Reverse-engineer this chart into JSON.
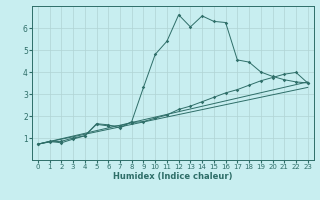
{
  "xlabel": "Humidex (Indice chaleur)",
  "bg_color": "#c8eef0",
  "line_color": "#2e6e68",
  "grid_color": "#b0d4d4",
  "xlim": [
    -0.5,
    23.5
  ],
  "ylim": [
    0,
    7
  ],
  "xticks": [
    0,
    1,
    2,
    3,
    4,
    5,
    6,
    7,
    8,
    9,
    10,
    11,
    12,
    13,
    14,
    15,
    16,
    17,
    18,
    19,
    20,
    21,
    22,
    23
  ],
  "yticks": [
    1,
    2,
    3,
    4,
    5,
    6
  ],
  "line1_x": [
    0,
    1,
    2,
    3,
    4,
    5,
    6,
    7,
    8,
    9,
    10,
    11,
    12,
    13,
    14,
    15,
    16,
    17,
    18,
    19,
    20,
    21,
    22,
    23
  ],
  "line1_y": [
    0.72,
    0.85,
    0.78,
    0.95,
    1.1,
    1.65,
    1.6,
    1.45,
    1.75,
    3.3,
    4.8,
    5.4,
    6.6,
    6.05,
    6.55,
    6.3,
    6.25,
    4.55,
    4.45,
    4.0,
    3.8,
    3.65,
    3.55,
    3.5
  ],
  "line2_x": [
    0,
    1,
    2,
    3,
    4,
    5,
    6,
    7,
    8,
    9,
    10,
    11,
    12,
    13,
    14,
    15,
    16,
    17,
    18,
    19,
    20,
    21,
    22,
    23
  ],
  "line2_y": [
    0.72,
    0.82,
    0.85,
    1.0,
    1.1,
    1.62,
    1.55,
    1.55,
    1.7,
    1.75,
    1.9,
    2.05,
    2.3,
    2.45,
    2.65,
    2.85,
    3.05,
    3.2,
    3.4,
    3.6,
    3.75,
    3.9,
    3.98,
    3.5
  ],
  "line3_x": [
    0,
    23
  ],
  "line3_y": [
    0.72,
    3.3
  ],
  "line4_x": [
    0,
    23
  ],
  "line4_y": [
    0.72,
    3.55
  ]
}
